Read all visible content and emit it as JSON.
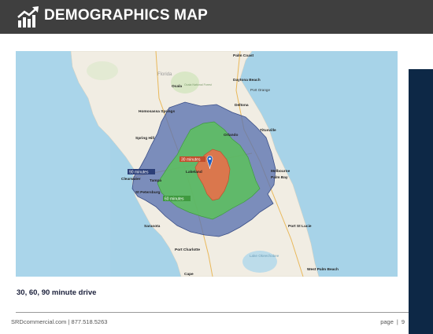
{
  "header": {
    "title": "DEMOGRAPHICS MAP"
  },
  "map": {
    "cities": {
      "palm_coast": "Palm Coast",
      "florida": "Florida",
      "ocala": "Ocala",
      "ocala_forest": "Ocala National Forest",
      "daytona": "Daytona Beach",
      "port_orange": "Port Orange",
      "deltona": "Deltona",
      "homosassa": "Homosassa Springs",
      "titusville": "Titusville",
      "spring_hill": "Spring Hill",
      "orlando": "Orlando",
      "melbourne": "Melbourne",
      "palm_bay": "Palm Bay",
      "clearwater": "Clearwater",
      "tampa": "Tampa",
      "lakeland": "Lakeland",
      "st_petersburg": "St Petersburg",
      "sarasota": "Sarasota",
      "port_st_lucie": "Port St Lucie",
      "port_charlotte": "Port Charlotte",
      "lake_okeechobee": "Lake Okeechobee",
      "west_palm_beach": "West Palm Beach",
      "cape": "Cape"
    },
    "zones": {
      "z30": "30 minutes",
      "z60": "60 minutes",
      "z90": "90 minutes"
    },
    "colors": {
      "zone_30": "#e8704a",
      "zone_60": "#5cc15c",
      "zone_90": "#5a72b0",
      "water": "#a7d3e8",
      "land": "#f1ede3"
    }
  },
  "caption": "30, 60, 90 minute drive",
  "footer": {
    "contact": "SRDcommercial.com | 877.518.5263",
    "page_label": "page",
    "separator": "|",
    "page_number": "9"
  }
}
